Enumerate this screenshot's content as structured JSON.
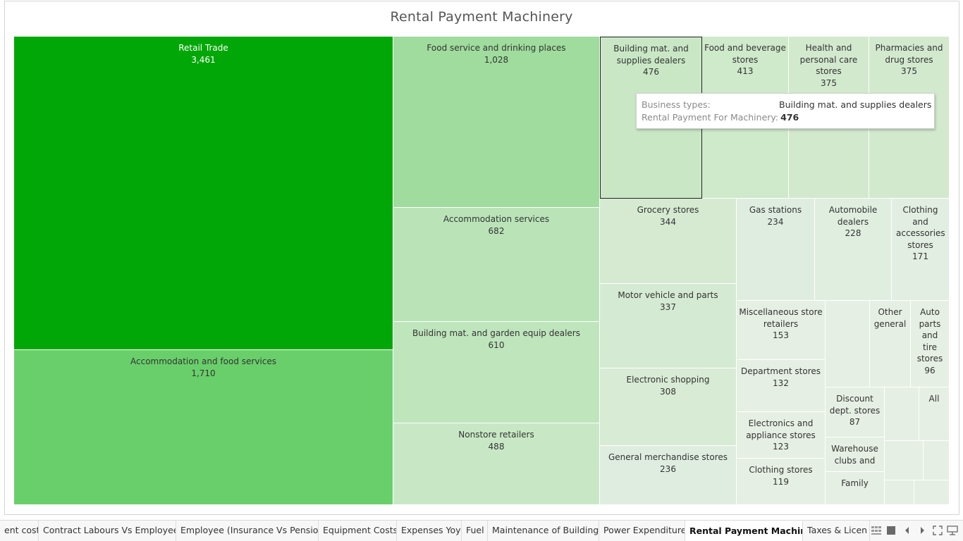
{
  "chart_data": {
    "type": "treemap",
    "title": "Rental Payment Machinery",
    "measure": "Rental Payment For Machinery",
    "dimension": "Business types",
    "color_scale": {
      "low": "#e6efe3",
      "high": "#00a706"
    },
    "items": [
      {
        "label": "Retail Trade",
        "value": 3461,
        "value_label": "3,461"
      },
      {
        "label": "Accommodation and food services",
        "value": 1710,
        "value_label": "1,710"
      },
      {
        "label": "Food service and drinking places",
        "value": 1028,
        "value_label": "1,028"
      },
      {
        "label": "Accommodation services",
        "value": 682,
        "value_label": "682"
      },
      {
        "label": "Building mat. and garden equip dealers",
        "value": 610,
        "value_label": "610"
      },
      {
        "label": "Nonstore retailers",
        "value": 488,
        "value_label": "488"
      },
      {
        "label": "Building mat. and supplies dealers",
        "value": 476,
        "value_label": "476"
      },
      {
        "label": "Food and beverage stores",
        "value": 413,
        "value_label": "413"
      },
      {
        "label": "Health and personal care stores",
        "value": 375,
        "value_label": "375"
      },
      {
        "label": "Pharmacies and drug stores",
        "value": 375,
        "value_label": "375"
      },
      {
        "label": "Grocery stores",
        "value": 344,
        "value_label": "344"
      },
      {
        "label": "Motor vehicle and parts",
        "value": 337,
        "value_label": "337"
      },
      {
        "label": "Electronic shopping",
        "value": 308,
        "value_label": "308"
      },
      {
        "label": "General merchandise stores",
        "value": 236,
        "value_label": "236"
      },
      {
        "label": "Gas stations",
        "value": 234,
        "value_label": "234"
      },
      {
        "label": "Automobile dealers",
        "value": 228,
        "value_label": "228"
      },
      {
        "label": "Clothing and accessories stores",
        "value": 171,
        "value_label": "171"
      },
      {
        "label": "Miscellaneous store retailers",
        "value": 153,
        "value_label": "153"
      },
      {
        "label": "Department stores",
        "value": 132,
        "value_label": "132"
      },
      {
        "label": "Electronics and appliance stores",
        "value": 123,
        "value_label": "123"
      },
      {
        "label": "Clothing stores",
        "value": 119,
        "value_label": "119"
      },
      {
        "label": "Other general",
        "value": null,
        "value_label": ""
      },
      {
        "label": "Auto parts and tire stores",
        "value": 96,
        "value_label": "96"
      },
      {
        "label": "Discount dept. stores",
        "value": 87,
        "value_label": "87"
      },
      {
        "label": "Warehouse clubs and",
        "value": null,
        "value_label": ""
      },
      {
        "label": "All",
        "value": null,
        "value_label": ""
      },
      {
        "label": "Family",
        "value": null,
        "value_label": ""
      },
      {
        "label": "",
        "value": null,
        "value_label": ""
      },
      {
        "label": "",
        "value": null,
        "value_label": ""
      },
      {
        "label": "",
        "value": null,
        "value_label": ""
      },
      {
        "label": "",
        "value": null,
        "value_label": ""
      },
      {
        "label": "",
        "value": null,
        "value_label": ""
      },
      {
        "label": "",
        "value": null,
        "value_label": ""
      }
    ],
    "selected": "Building mat. and supplies dealers"
  },
  "tooltip": {
    "key1": "Business types:",
    "value1": "Building mat. and supplies dealers",
    "key2": "Rental Payment For Machinery:",
    "value2": "476"
  },
  "tabs": [
    {
      "label": "ent cost",
      "active": false
    },
    {
      "label": "Contract Labours Vs Employees",
      "active": false
    },
    {
      "label": "Employee (Insurance Vs Pension)",
      "active": false
    },
    {
      "label": "Equipment Costs",
      "active": false
    },
    {
      "label": "Expenses Yoy",
      "active": false
    },
    {
      "label": "Fuel",
      "active": false
    },
    {
      "label": "Maintenance of Buildings",
      "active": false
    },
    {
      "label": "Power Expenditure",
      "active": false
    },
    {
      "label": "Rental Payment Machinery",
      "active": true
    },
    {
      "label": "Taxes & Licen",
      "active": false
    }
  ],
  "nav_icons": [
    "sheet-sorter-icon",
    "filmstrip-icon",
    "previous-sheet-icon",
    "next-sheet-icon",
    "fullscreen-icon",
    "present-icon"
  ]
}
